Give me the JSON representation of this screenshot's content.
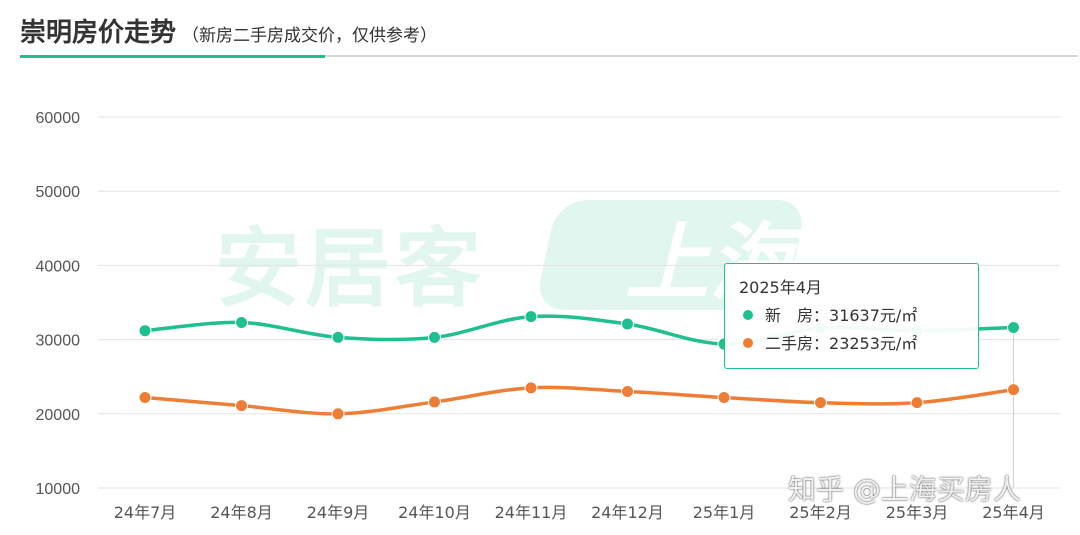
{
  "header": {
    "title": "崇明房价走势",
    "subtitle": "（新房二手房成交价，仅供参考）"
  },
  "watermarks": {
    "brand": "安居客",
    "badge": "上海",
    "site": "知乎 @上海买房人"
  },
  "tooltip": {
    "title": "2025年4月",
    "rows": [
      {
        "label": "新　房：",
        "value": "31637元/㎡",
        "color": "#1fbf8f"
      },
      {
        "label": "二手房：",
        "value": "23253元/㎡",
        "color": "#ee7e36"
      }
    ]
  },
  "colors": {
    "new": "#1fbf8f",
    "second": "#ee7e36",
    "grid": "#e3e3e3",
    "axis_text": "#555555"
  },
  "chart_data": {
    "type": "line",
    "categories": [
      "24年7月",
      "24年8月",
      "24年9月",
      "24年10月",
      "24年11月",
      "24年12月",
      "25年1月",
      "25年2月",
      "25年3月",
      "25年4月"
    ],
    "yticks": [
      10000,
      20000,
      30000,
      40000,
      50000,
      60000
    ],
    "ylim": [
      10000,
      60000
    ],
    "grid": true,
    "series": [
      {
        "name": "新　房",
        "color": "#1fbf8f",
        "values": [
          31200,
          32300,
          30300,
          30300,
          33100,
          32100,
          29400,
          31500,
          31200,
          31637
        ]
      },
      {
        "name": "二手房",
        "color": "#ee7e36",
        "values": [
          22200,
          21100,
          20000,
          21600,
          23500,
          23000,
          22200,
          21500,
          21500,
          23253
        ]
      }
    ]
  }
}
